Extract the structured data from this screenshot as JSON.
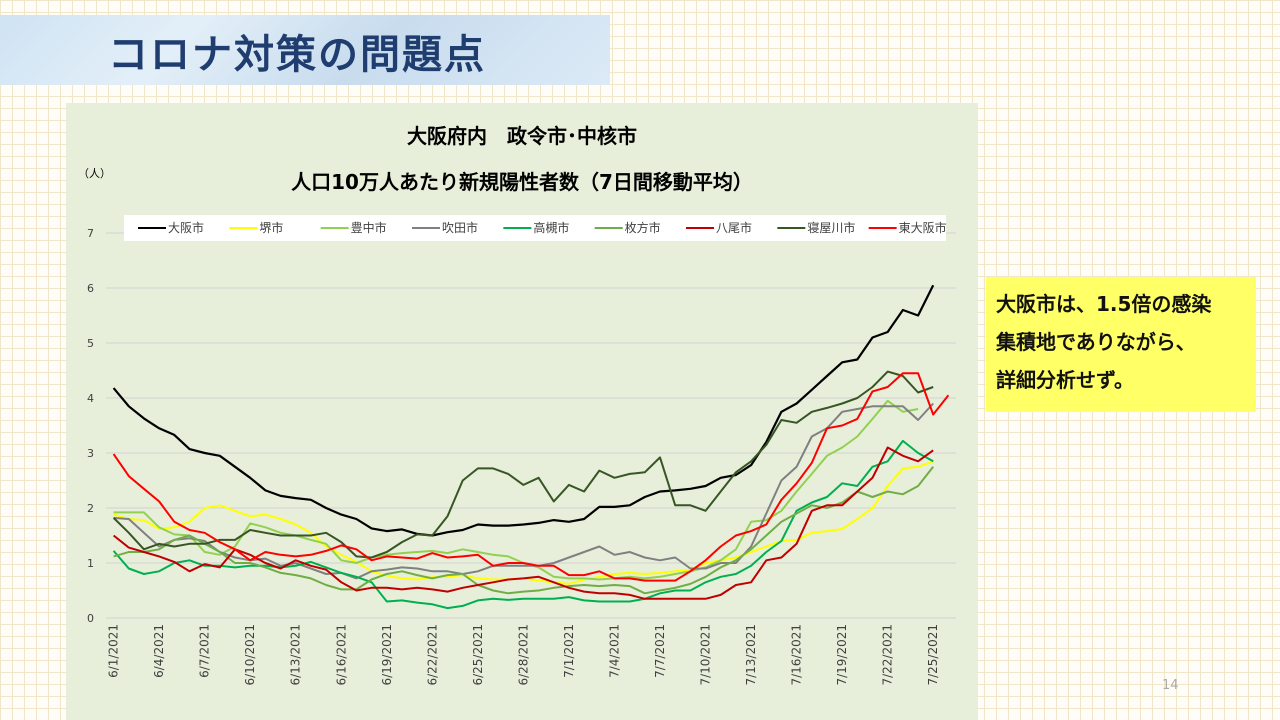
{
  "slide": {
    "title": "コロナ対策の問題点",
    "page_number": "14"
  },
  "callout": {
    "lines": [
      "大阪市は、1.5倍の感染",
      "集積地でありながら、",
      "詳細分析せず。"
    ]
  },
  "chart_data": {
    "type": "line",
    "title": "大阪府内　政令市･中核市",
    "subtitle": "人口10万人あたり新規陽性者数（7日間移動平均）",
    "ylabel": "（人）",
    "ylim": [
      0,
      7
    ],
    "yticks": [
      0,
      1,
      2,
      3,
      4,
      5,
      6,
      7
    ],
    "grid": true,
    "legend_position": "top",
    "x": [
      "6/1/2021",
      "6/2/2021",
      "6/3/2021",
      "6/4/2021",
      "6/5/2021",
      "6/6/2021",
      "6/7/2021",
      "6/8/2021",
      "6/9/2021",
      "6/10/2021",
      "6/11/2021",
      "6/12/2021",
      "6/13/2021",
      "6/14/2021",
      "6/15/2021",
      "6/16/2021",
      "6/17/2021",
      "6/18/2021",
      "6/19/2021",
      "6/20/2021",
      "6/21/2021",
      "6/22/2021",
      "6/23/2021",
      "6/24/2021",
      "6/25/2021",
      "6/26/2021",
      "6/27/2021",
      "6/28/2021",
      "6/29/2021",
      "6/30/2021",
      "7/1/2021",
      "7/2/2021",
      "7/3/2021",
      "7/4/2021",
      "7/5/2021",
      "7/6/2021",
      "7/7/2021",
      "7/8/2021",
      "7/9/2021",
      "7/10/2021",
      "7/11/2021",
      "7/12/2021",
      "7/13/2021",
      "7/14/2021",
      "7/15/2021",
      "7/16/2021",
      "7/17/2021",
      "7/18/2021",
      "7/19/2021",
      "7/20/2021",
      "7/21/2021",
      "7/22/2021",
      "7/23/2021",
      "7/24/2021",
      "7/25/2021",
      "7/26/2021"
    ],
    "xtick_labels": [
      "6/1/2021",
      "6/4/2021",
      "6/7/2021",
      "6/10/2021",
      "6/13/2021",
      "6/16/2021",
      "6/19/2021",
      "6/22/2021",
      "6/25/2021",
      "6/28/2021",
      "7/1/2021",
      "7/4/2021",
      "7/7/2021",
      "7/10/2021",
      "7/13/2021",
      "7/16/2021",
      "7/19/2021",
      "7/22/2021",
      "7/25/2021"
    ],
    "series": [
      {
        "name": "大阪市",
        "color": "#000000",
        "width": 2.2,
        "values": [
          4.18,
          3.85,
          3.63,
          3.45,
          3.33,
          3.07,
          3.0,
          2.95,
          2.75,
          2.55,
          2.32,
          2.22,
          2.18,
          2.15,
          2.0,
          1.88,
          1.8,
          1.63,
          1.58,
          1.61,
          1.53,
          1.5,
          1.56,
          1.6,
          1.7,
          1.68,
          1.68,
          1.7,
          1.73,
          1.78,
          1.75,
          1.8,
          2.02,
          2.02,
          2.05,
          2.2,
          2.3,
          2.32,
          2.35,
          2.4,
          2.55,
          2.6,
          2.78,
          3.2,
          3.75,
          3.9,
          4.15,
          4.4,
          4.65,
          4.7,
          5.1,
          5.2,
          5.6,
          5.5,
          6.05,
          null
        ]
      },
      {
        "name": "堺市",
        "color": "#ffff00",
        "width": 2,
        "values": [
          1.88,
          1.8,
          1.78,
          1.62,
          1.65,
          1.75,
          2.0,
          2.05,
          1.95,
          1.85,
          1.88,
          1.8,
          1.7,
          1.55,
          1.3,
          1.15,
          1.02,
          0.85,
          0.77,
          0.72,
          0.7,
          0.74,
          0.75,
          0.78,
          0.72,
          0.7,
          0.7,
          0.72,
          0.68,
          0.65,
          0.62,
          0.7,
          0.75,
          0.8,
          0.82,
          0.8,
          0.82,
          0.85,
          0.88,
          1.0,
          1.05,
          1.1,
          1.2,
          1.3,
          1.4,
          1.42,
          1.55,
          1.58,
          1.62,
          1.8,
          2.0,
          2.4,
          2.72,
          2.75,
          2.85,
          null
        ]
      },
      {
        "name": "豊中市",
        "color": "#92d050",
        "width": 2,
        "values": [
          1.92,
          1.92,
          1.92,
          1.65,
          1.52,
          1.5,
          1.2,
          1.15,
          1.3,
          1.72,
          1.65,
          1.55,
          1.5,
          1.42,
          1.35,
          1.05,
          1.0,
          1.1,
          1.15,
          1.18,
          1.2,
          1.22,
          1.18,
          1.25,
          1.2,
          1.15,
          1.12,
          1.0,
          0.92,
          0.75,
          0.72,
          0.72,
          0.7,
          0.72,
          0.75,
          0.72,
          0.75,
          0.8,
          0.85,
          0.92,
          1.05,
          1.25,
          1.75,
          1.78,
          1.95,
          2.3,
          2.62,
          2.95,
          3.1,
          3.3,
          3.62,
          3.95,
          3.75,
          3.8,
          null,
          null
        ]
      },
      {
        "name": "吹田市",
        "color": "#808080",
        "width": 2,
        "values": [
          1.82,
          1.8,
          1.55,
          1.3,
          1.42,
          1.45,
          1.4,
          1.2,
          1.1,
          1.05,
          1.08,
          0.95,
          1.0,
          0.9,
          0.8,
          0.82,
          0.72,
          0.85,
          0.88,
          0.92,
          0.9,
          0.85,
          0.85,
          0.8,
          0.85,
          0.95,
          0.95,
          0.95,
          0.95,
          1.0,
          1.1,
          1.2,
          1.3,
          1.15,
          1.2,
          1.1,
          1.05,
          1.1,
          0.9,
          0.9,
          1.0,
          1.0,
          1.3,
          1.9,
          2.5,
          2.75,
          3.3,
          3.45,
          3.75,
          3.8,
          3.85,
          3.85,
          3.85,
          3.6,
          3.9,
          null
        ]
      },
      {
        "name": "高槻市",
        "color": "#00b050",
        "width": 2,
        "values": [
          1.22,
          0.9,
          0.8,
          0.85,
          1.0,
          1.05,
          0.95,
          0.95,
          0.92,
          0.95,
          0.95,
          0.92,
          0.95,
          1.02,
          0.92,
          0.82,
          0.75,
          0.65,
          0.3,
          0.32,
          0.28,
          0.25,
          0.18,
          0.22,
          0.32,
          0.35,
          0.33,
          0.35,
          0.35,
          0.35,
          0.38,
          0.32,
          0.3,
          0.3,
          0.3,
          0.35,
          0.45,
          0.5,
          0.5,
          0.65,
          0.75,
          0.8,
          0.95,
          1.2,
          1.4,
          1.95,
          2.1,
          2.2,
          2.45,
          2.4,
          2.75,
          2.85,
          3.22,
          3.0,
          2.85,
          null
        ]
      },
      {
        "name": "枚方市",
        "color": "#70ad47",
        "width": 2,
        "values": [
          1.12,
          1.2,
          1.2,
          1.25,
          1.42,
          1.5,
          1.35,
          1.2,
          1.0,
          1.0,
          0.92,
          0.82,
          0.78,
          0.72,
          0.6,
          0.52,
          0.52,
          0.7,
          0.8,
          0.85,
          0.78,
          0.72,
          0.78,
          0.8,
          0.6,
          0.5,
          0.45,
          0.48,
          0.5,
          0.55,
          0.58,
          0.6,
          0.58,
          0.6,
          0.58,
          0.45,
          0.5,
          0.55,
          0.62,
          0.75,
          0.92,
          1.05,
          1.25,
          1.5,
          1.75,
          1.9,
          2.05,
          2.0,
          2.1,
          2.3,
          2.2,
          2.3,
          2.25,
          2.4,
          2.75,
          null
        ]
      },
      {
        "name": "八尾市",
        "color": "#c00000",
        "width": 2,
        "values": [
          1.5,
          1.28,
          1.2,
          1.12,
          1.02,
          0.85,
          0.98,
          0.92,
          1.25,
          1.15,
          1.0,
          0.9,
          1.05,
          0.95,
          0.88,
          0.65,
          0.5,
          0.55,
          0.55,
          0.52,
          0.55,
          0.52,
          0.48,
          0.55,
          0.6,
          0.65,
          0.7,
          0.72,
          0.75,
          0.65,
          0.55,
          0.48,
          0.45,
          0.45,
          0.42,
          0.35,
          0.35,
          0.35,
          0.35,
          0.35,
          0.42,
          0.6,
          0.65,
          1.05,
          1.1,
          1.35,
          1.95,
          2.05,
          2.05,
          2.3,
          2.55,
          3.1,
          2.95,
          2.85,
          3.05,
          null
        ]
      },
      {
        "name": "寝屋川市",
        "color": "#375623",
        "width": 2,
        "values": [
          1.82,
          1.55,
          1.25,
          1.35,
          1.3,
          1.35,
          1.35,
          1.42,
          1.42,
          1.6,
          1.55,
          1.5,
          1.5,
          1.5,
          1.55,
          1.38,
          1.12,
          1.1,
          1.2,
          1.38,
          1.52,
          1.5,
          1.85,
          2.5,
          2.72,
          2.72,
          2.62,
          2.42,
          2.55,
          2.12,
          2.42,
          2.3,
          2.68,
          2.55,
          2.62,
          2.65,
          2.92,
          2.05,
          2.05,
          1.95,
          2.3,
          2.65,
          2.85,
          3.15,
          3.6,
          3.55,
          3.75,
          3.82,
          3.9,
          4.0,
          4.2,
          4.48,
          4.4,
          4.1,
          4.2,
          null
        ]
      },
      {
        "name": "東大阪市",
        "color": "#ff0000",
        "width": 2,
        "values": [
          2.98,
          2.58,
          2.35,
          2.12,
          1.75,
          1.6,
          1.55,
          1.38,
          1.25,
          1.05,
          1.2,
          1.15,
          1.12,
          1.15,
          1.22,
          1.32,
          1.25,
          1.05,
          1.12,
          1.1,
          1.08,
          1.18,
          1.1,
          1.12,
          1.15,
          0.95,
          1.0,
          1.0,
          0.95,
          0.95,
          0.78,
          0.78,
          0.85,
          0.72,
          0.72,
          0.68,
          0.68,
          0.68,
          0.85,
          1.05,
          1.3,
          1.5,
          1.58,
          1.7,
          2.15,
          2.45,
          2.82,
          3.45,
          3.5,
          3.62,
          4.12,
          4.2,
          4.45,
          4.45,
          3.7,
          4.05
        ]
      }
    ]
  }
}
